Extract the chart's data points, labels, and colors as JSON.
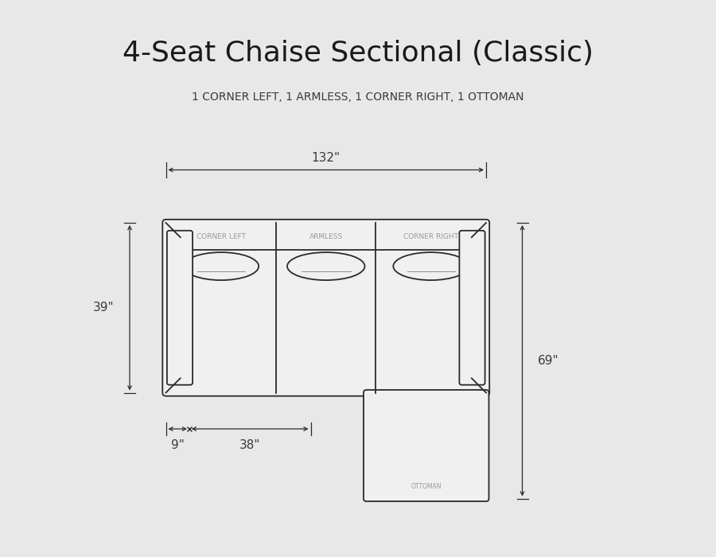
{
  "title": "4-Seat Chaise Sectional (Classic)",
  "subtitle": "1 CORNER LEFT, 1 ARMLESS, 1 CORNER RIGHT, 1 OTTOMAN",
  "bg_color": "#e8e8e8",
  "line_color": "#2a2a2a",
  "fill_color": "#f0f0f0",
  "dim_color": "#3a3a3a",
  "label_color": "#999999",
  "title_fontsize": 26,
  "subtitle_fontsize": 10,
  "dim_fontsize": 11,
  "label_fontsize": 6.5,
  "dim_132_label": "132\"",
  "dim_39_label": "39\"",
  "dim_69_label": "69\"",
  "dim_38_label": "38\"",
  "dim_9_label": "9\""
}
